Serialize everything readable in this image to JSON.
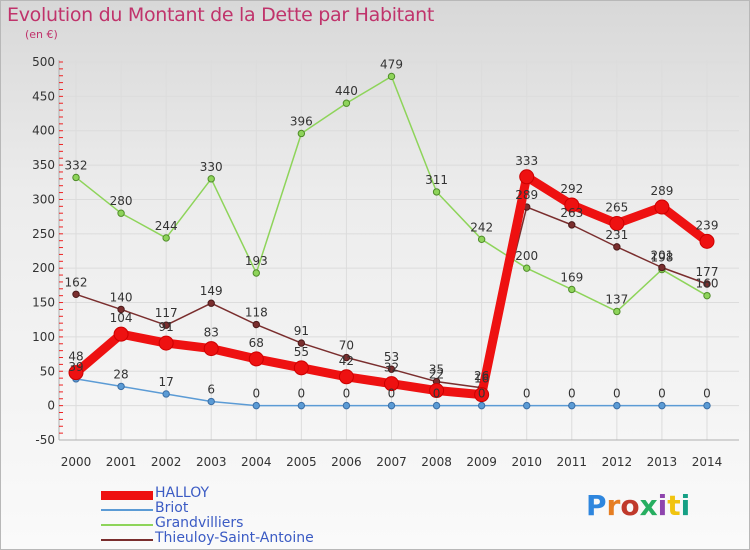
{
  "title": "Evolution du Montant de la Dette par Habitant",
  "subtitle": "(en €)",
  "logo_text": "Proxiti",
  "chart_data": {
    "type": "line",
    "x": [
      "2000",
      "2001",
      "2002",
      "2003",
      "2004",
      "2005",
      "2006",
      "2007",
      "2008",
      "2009",
      "2010",
      "2011",
      "2012",
      "2013",
      "2014"
    ],
    "ylim": [
      -50,
      500
    ],
    "yticks": [
      -50,
      0,
      50,
      100,
      150,
      200,
      250,
      300,
      350,
      400,
      450,
      500
    ],
    "grid": true,
    "legend_position": "bottom-left",
    "series": [
      {
        "name": "HALLOY",
        "color": "#ee1111",
        "values": [
          48,
          104,
          91,
          83,
          68,
          55,
          42,
          32,
          22,
          16,
          333,
          292,
          265,
          289,
          239
        ]
      },
      {
        "name": "Briot",
        "color": "#5b9bd5",
        "values": [
          39,
          28,
          17,
          6,
          0,
          0,
          0,
          0,
          0,
          0,
          0,
          0,
          0,
          0,
          0
        ]
      },
      {
        "name": "Grandvilliers",
        "color": "#8ed45a",
        "values": [
          332,
          280,
          244,
          330,
          193,
          396,
          440,
          479,
          311,
          242,
          200,
          169,
          137,
          198,
          160
        ]
      },
      {
        "name": "Thieuloy-Saint-Antoine",
        "color": "#7a2e2e",
        "values": [
          162,
          140,
          117,
          149,
          118,
          91,
          70,
          53,
          35,
          26,
          289,
          263,
          231,
          201,
          177
        ]
      }
    ]
  }
}
